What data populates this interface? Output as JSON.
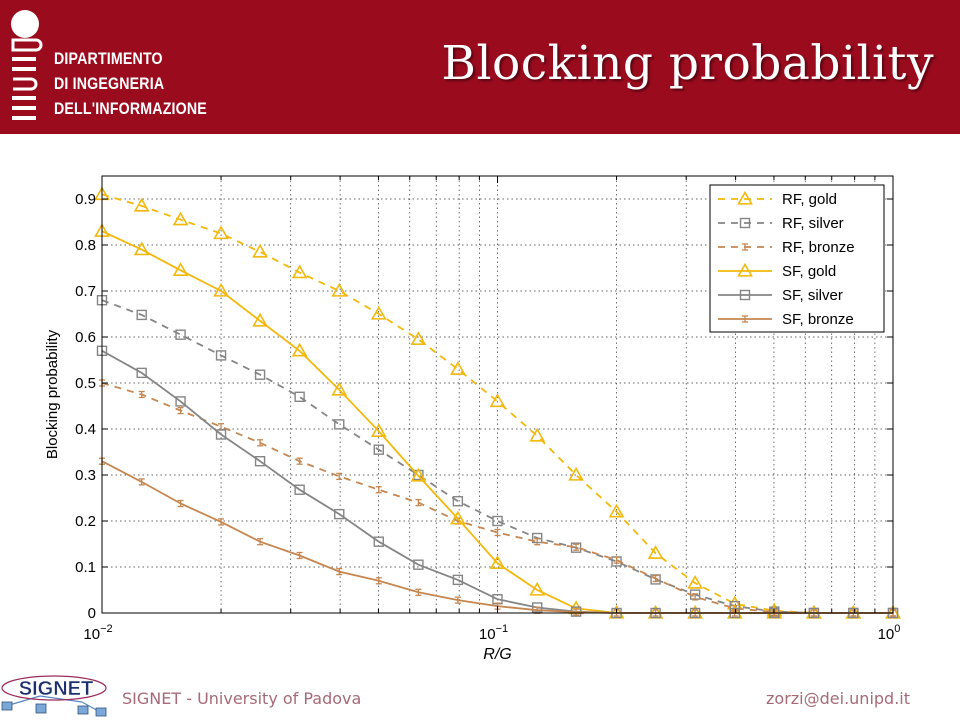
{
  "header": {
    "department": [
      "DIPARTIMENTO",
      "DI INGEGNERIA",
      "DELL'INFORMAZIONE"
    ],
    "title": "Blocking probability"
  },
  "footer": {
    "left": "SIGNET - University of Padova",
    "right": "zorzi@dei.unipd.it",
    "logo_text": "SIGNET"
  },
  "colors": {
    "header_bg": "#9b0b1e",
    "gold": "#f2b80c",
    "silver": "#858585",
    "bronze": "#c68650",
    "footer_text": "#a66a77"
  },
  "chart_data": {
    "type": "line",
    "x_scale": "log",
    "xlim": [
      0.01,
      1
    ],
    "ylim": [
      0,
      0.95
    ],
    "xlabel": "R/G",
    "ylabel": "Blocking probability",
    "x_ticks": [
      0.01,
      0.1,
      1
    ],
    "x_tick_labels": [
      {
        "base": "10",
        "exp": "−2"
      },
      {
        "base": "10",
        "exp": "−1"
      },
      {
        "base": "10",
        "exp": "0"
      }
    ],
    "y_ticks": [
      0,
      0.1,
      0.2,
      0.3,
      0.4,
      0.5,
      0.6,
      0.7,
      0.8,
      0.9
    ],
    "y_tick_labels": [
      "0",
      "0.1",
      "0.2",
      "0.3",
      "0.4",
      "0.5",
      "0.6",
      "0.7",
      "0.8",
      "0.9"
    ],
    "grid": true,
    "legend_position": "top-right",
    "x": [
      0.01,
      0.0126,
      0.0158,
      0.02,
      0.0251,
      0.0316,
      0.0398,
      0.0501,
      0.0631,
      0.0794,
      0.1,
      0.126,
      0.158,
      0.2,
      0.251,
      0.316,
      0.398,
      0.501,
      0.631,
      0.794,
      1.0
    ],
    "series": [
      {
        "name": "RF, gold",
        "color": "gold",
        "dash": true,
        "marker": "triangle",
        "values": [
          0.91,
          0.885,
          0.855,
          0.825,
          0.785,
          0.74,
          0.7,
          0.65,
          0.595,
          0.53,
          0.46,
          0.385,
          0.3,
          0.22,
          0.13,
          0.065,
          0.02,
          0.005,
          0.0,
          0.0,
          0.0
        ]
      },
      {
        "name": "RF, silver",
        "color": "silver",
        "dash": true,
        "marker": "square",
        "values": [
          0.68,
          0.648,
          0.605,
          0.56,
          0.518,
          0.47,
          0.41,
          0.355,
          0.3,
          0.243,
          0.2,
          0.163,
          0.142,
          0.112,
          0.073,
          0.04,
          0.015,
          0.003,
          0.0,
          0.0,
          0.0
        ]
      },
      {
        "name": "RF, bronze",
        "color": "bronze",
        "dash": true,
        "marker": "errorbar",
        "values": [
          0.5,
          0.475,
          0.44,
          0.405,
          0.37,
          0.33,
          0.297,
          0.268,
          0.24,
          0.2,
          0.175,
          0.155,
          0.143,
          0.115,
          0.075,
          0.035,
          0.01,
          0.002,
          0.0,
          0.0,
          0.0
        ]
      },
      {
        "name": "SF, gold",
        "color": "gold",
        "dash": false,
        "marker": "triangle",
        "values": [
          0.83,
          0.79,
          0.745,
          0.7,
          0.635,
          0.57,
          0.485,
          0.395,
          0.298,
          0.205,
          0.108,
          0.05,
          0.01,
          0.0,
          0.0,
          0.0,
          0.0,
          0.0,
          0.0,
          0.0,
          0.0
        ]
      },
      {
        "name": "SF, silver",
        "color": "silver",
        "dash": false,
        "marker": "square",
        "values": [
          0.57,
          0.522,
          0.46,
          0.388,
          0.33,
          0.268,
          0.215,
          0.155,
          0.105,
          0.072,
          0.03,
          0.012,
          0.003,
          0.0,
          0.0,
          0.0,
          0.0,
          0.0,
          0.0,
          0.0,
          0.0
        ]
      },
      {
        "name": "SF, bronze",
        "color": "bronze",
        "dash": false,
        "marker": "errorbar",
        "values": [
          0.33,
          0.285,
          0.238,
          0.198,
          0.155,
          0.125,
          0.09,
          0.07,
          0.045,
          0.028,
          0.015,
          0.006,
          0.002,
          0.0,
          0.0,
          0.0,
          0.0,
          0.0,
          0.0,
          0.0,
          0.0
        ]
      }
    ]
  }
}
